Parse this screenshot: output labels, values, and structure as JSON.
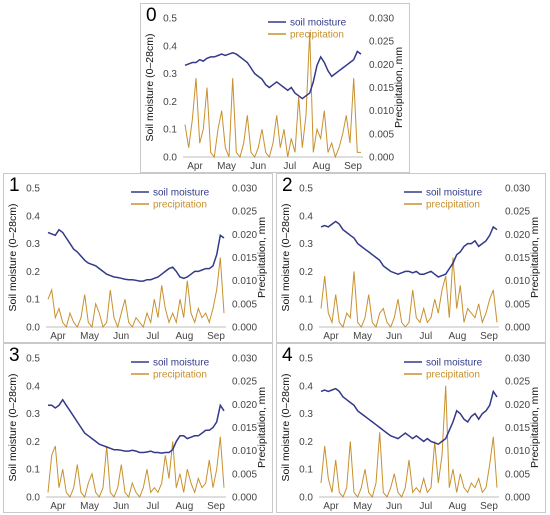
{
  "colors": {
    "soil_moisture": "#333a8a",
    "precipitation": "#c8902e",
    "axis": "#bdbdbd"
  },
  "chart_data": [
    {
      "panel_label": "0",
      "type": "line",
      "x_tick_labels": [
        "Apr",
        "May",
        "Jun",
        "Jul",
        "Aug",
        "Sep"
      ],
      "ylabel_left": "Soil moisture (0–28cm)",
      "ylabel_right": "Precipitation, mm",
      "y_left_ticks": [
        "0.0",
        "0.1",
        "0.2",
        "0.3",
        "0.4",
        "0.5"
      ],
      "y_right_ticks": [
        "0.000",
        "0.005",
        "0.010",
        "0.015",
        "0.020",
        "0.025",
        "0.030"
      ],
      "ylim_left": [
        0,
        0.5
      ],
      "ylim_right": [
        0,
        0.03
      ],
      "legend": [
        "soil moisture",
        "precipitation"
      ],
      "legend_position": "top-right",
      "series": [
        {
          "name": "soil moisture",
          "axis": "left",
          "values": [
            0.33,
            0.335,
            0.34,
            0.34,
            0.35,
            0.345,
            0.355,
            0.36,
            0.36,
            0.365,
            0.37,
            0.365,
            0.37,
            0.375,
            0.37,
            0.36,
            0.35,
            0.34,
            0.32,
            0.3,
            0.29,
            0.28,
            0.26,
            0.25,
            0.26,
            0.27,
            0.26,
            0.25,
            0.24,
            0.25,
            0.23,
            0.22,
            0.21,
            0.22,
            0.23,
            0.27,
            0.33,
            0.36,
            0.34,
            0.31,
            0.29,
            0.3,
            0.31,
            0.32,
            0.33,
            0.34,
            0.35,
            0.38,
            0.37
          ]
        },
        {
          "name": "precipitation",
          "axis": "right",
          "values": [
            0.007,
            0.002,
            0.008,
            0.017,
            0.003,
            0.006,
            0.015,
            0.001,
            0.0,
            0.006,
            0.01,
            0.002,
            0.0,
            0.017,
            0.001,
            0.0,
            0.003,
            0.009,
            0.001,
            0.0,
            0.002,
            0.006,
            0.001,
            0.0,
            0.003,
            0.009,
            0.002,
            0.006,
            0.0,
            0.004,
            0.001,
            0.013,
            0.002,
            0.009,
            0.027,
            0.001,
            0.006,
            0.004,
            0.01,
            0.001,
            0.003,
            0.0,
            0.002,
            0.005,
            0.009,
            0.003,
            0.017,
            0.001,
            0.001
          ]
        }
      ]
    },
    {
      "panel_label": "1",
      "type": "line",
      "x_tick_labels": [
        "Apr",
        "May",
        "Jun",
        "Jul",
        "Aug",
        "Sep"
      ],
      "ylabel_left": "Soil moisture (0–28cm)",
      "ylabel_right": "Precipitation, mm",
      "y_left_ticks": [
        "0.0",
        "0.1",
        "0.2",
        "0.3",
        "0.4",
        "0.5"
      ],
      "y_right_ticks": [
        "0.000",
        "0.005",
        "0.010",
        "0.015",
        "0.020",
        "0.025",
        "0.030"
      ],
      "ylim_left": [
        0,
        0.5
      ],
      "ylim_right": [
        0,
        0.03
      ],
      "legend": [
        "soil moisture",
        "precipitation"
      ],
      "legend_position": "top-right",
      "series": [
        {
          "name": "soil moisture",
          "axis": "left",
          "values": [
            0.34,
            0.335,
            0.33,
            0.35,
            0.34,
            0.32,
            0.3,
            0.28,
            0.27,
            0.255,
            0.24,
            0.23,
            0.225,
            0.22,
            0.21,
            0.2,
            0.19,
            0.185,
            0.18,
            0.178,
            0.175,
            0.172,
            0.17,
            0.17,
            0.168,
            0.165,
            0.165,
            0.17,
            0.17,
            0.175,
            0.18,
            0.19,
            0.2,
            0.21,
            0.215,
            0.2,
            0.18,
            0.175,
            0.18,
            0.19,
            0.2,
            0.2,
            0.205,
            0.21,
            0.21,
            0.22,
            0.26,
            0.33,
            0.32
          ]
        },
        {
          "name": "precipitation",
          "axis": "right",
          "values": [
            0.006,
            0.008,
            0.002,
            0.004,
            0.001,
            0.0,
            0.003,
            0.001,
            0.0,
            0.002,
            0.007,
            0.001,
            0.0,
            0.005,
            0.003,
            0.0,
            0.001,
            0.008,
            0.002,
            0.0,
            0.003,
            0.006,
            0.001,
            0.0,
            0.002,
            0.001,
            0.0,
            0.003,
            0.001,
            0.006,
            0.002,
            0.009,
            0.004,
            0.001,
            0.003,
            0.001,
            0.006,
            0.002,
            0.01,
            0.003,
            0.001,
            0.004,
            0.002,
            0.003,
            0.001,
            0.004,
            0.008,
            0.015,
            0.003
          ]
        }
      ]
    },
    {
      "panel_label": "2",
      "type": "line",
      "x_tick_labels": [
        "Apr",
        "May",
        "Jun",
        "Jul",
        "Aug",
        "Sep"
      ],
      "ylabel_left": "Soil moisture (0–28cm)",
      "ylabel_right": "Precipitation, mm",
      "y_left_ticks": [
        "0.0",
        "0.1",
        "0.2",
        "0.3",
        "0.4",
        "0.5"
      ],
      "y_right_ticks": [
        "0.000",
        "0.005",
        "0.010",
        "0.015",
        "0.020",
        "0.025",
        "0.030"
      ],
      "ylim_left": [
        0,
        0.5
      ],
      "ylim_right": [
        0,
        0.03
      ],
      "legend": [
        "soil moisture",
        "precipitation"
      ],
      "legend_position": "top-right",
      "series": [
        {
          "name": "soil moisture",
          "axis": "left",
          "values": [
            0.36,
            0.365,
            0.36,
            0.37,
            0.38,
            0.37,
            0.35,
            0.34,
            0.33,
            0.32,
            0.3,
            0.29,
            0.28,
            0.27,
            0.26,
            0.25,
            0.24,
            0.22,
            0.21,
            0.2,
            0.195,
            0.19,
            0.195,
            0.2,
            0.2,
            0.195,
            0.2,
            0.19,
            0.19,
            0.195,
            0.2,
            0.19,
            0.18,
            0.185,
            0.19,
            0.21,
            0.23,
            0.26,
            0.27,
            0.29,
            0.3,
            0.3,
            0.31,
            0.29,
            0.3,
            0.31,
            0.33,
            0.36,
            0.35
          ]
        },
        {
          "name": "precipitation",
          "axis": "right",
          "values": [
            0.004,
            0.011,
            0.003,
            0.001,
            0.007,
            0.001,
            0.0,
            0.003,
            0.002,
            0.012,
            0.001,
            0.0,
            0.002,
            0.007,
            0.001,
            0.0,
            0.003,
            0.004,
            0.001,
            0.0,
            0.002,
            0.006,
            0.001,
            0.0,
            0.001,
            0.008,
            0.002,
            0.001,
            0.004,
            0.001,
            0.002,
            0.006,
            0.003,
            0.008,
            0.011,
            0.002,
            0.015,
            0.004,
            0.009,
            0.001,
            0.004,
            0.003,
            0.002,
            0.005,
            0.001,
            0.003,
            0.006,
            0.008,
            0.001
          ]
        }
      ]
    },
    {
      "panel_label": "3",
      "type": "line",
      "x_tick_labels": [
        "Apr",
        "May",
        "Jun",
        "Jul",
        "Aug",
        "Sep"
      ],
      "ylabel_left": "Soil moisture (0–28cm)",
      "ylabel_right": "Precipitation, mm",
      "y_left_ticks": [
        "0.0",
        "0.1",
        "0.2",
        "0.3",
        "0.4",
        "0.5"
      ],
      "y_right_ticks": [
        "0.000",
        "0.005",
        "0.010",
        "0.015",
        "0.020",
        "0.025",
        "0.030"
      ],
      "ylim_left": [
        0,
        0.5
      ],
      "ylim_right": [
        0,
        0.03
      ],
      "legend": [
        "soil moisture",
        "precipitation"
      ],
      "legend_position": "top-right",
      "series": [
        {
          "name": "soil moisture",
          "axis": "left",
          "values": [
            0.33,
            0.33,
            0.32,
            0.33,
            0.35,
            0.33,
            0.31,
            0.29,
            0.27,
            0.25,
            0.23,
            0.22,
            0.21,
            0.2,
            0.19,
            0.185,
            0.18,
            0.175,
            0.17,
            0.17,
            0.168,
            0.165,
            0.165,
            0.168,
            0.165,
            0.16,
            0.16,
            0.162,
            0.165,
            0.16,
            0.16,
            0.158,
            0.16,
            0.16,
            0.17,
            0.2,
            0.22,
            0.22,
            0.21,
            0.215,
            0.22,
            0.22,
            0.23,
            0.24,
            0.24,
            0.25,
            0.27,
            0.33,
            0.31
          ]
        },
        {
          "name": "precipitation",
          "axis": "right",
          "values": [
            0.001,
            0.009,
            0.011,
            0.002,
            0.006,
            0.001,
            0.0,
            0.002,
            0.007,
            0.001,
            0.0,
            0.003,
            0.005,
            0.001,
            0.0,
            0.002,
            0.011,
            0.001,
            0.0,
            0.002,
            0.007,
            0.001,
            0.0,
            0.003,
            0.001,
            0.0,
            0.002,
            0.006,
            0.001,
            0.002,
            0.001,
            0.003,
            0.009,
            0.004,
            0.012,
            0.002,
            0.005,
            0.001,
            0.006,
            0.003,
            0.001,
            0.004,
            0.002,
            0.003,
            0.008,
            0.002,
            0.006,
            0.013,
            0.002
          ]
        }
      ]
    },
    {
      "panel_label": "4",
      "type": "line",
      "x_tick_labels": [
        "Apr",
        "May",
        "Jun",
        "Jul",
        "Aug",
        "Sep"
      ],
      "ylabel_left": "Soil moisture (0–28cm)",
      "ylabel_right": "Precipitation, mm",
      "y_left_ticks": [
        "0.0",
        "0.1",
        "0.2",
        "0.3",
        "0.4",
        "0.5"
      ],
      "y_right_ticks": [
        "0.000",
        "0.005",
        "0.010",
        "0.015",
        "0.020",
        "0.025",
        "0.030"
      ],
      "ylim_left": [
        0,
        0.5
      ],
      "ylim_right": [
        0,
        0.03
      ],
      "legend": [
        "soil moisture",
        "precipitation"
      ],
      "legend_position": "top-right",
      "series": [
        {
          "name": "soil moisture",
          "axis": "left",
          "values": [
            0.38,
            0.385,
            0.38,
            0.385,
            0.39,
            0.38,
            0.36,
            0.35,
            0.34,
            0.33,
            0.31,
            0.3,
            0.29,
            0.28,
            0.27,
            0.26,
            0.25,
            0.24,
            0.23,
            0.22,
            0.215,
            0.21,
            0.22,
            0.23,
            0.22,
            0.21,
            0.22,
            0.21,
            0.2,
            0.21,
            0.2,
            0.195,
            0.19,
            0.2,
            0.21,
            0.24,
            0.27,
            0.31,
            0.3,
            0.28,
            0.27,
            0.29,
            0.3,
            0.28,
            0.3,
            0.31,
            0.33,
            0.38,
            0.36
          ]
        },
        {
          "name": "precipitation",
          "axis": "right",
          "values": [
            0.003,
            0.011,
            0.004,
            0.001,
            0.008,
            0.001,
            0.0,
            0.002,
            0.012,
            0.001,
            0.0,
            0.002,
            0.006,
            0.001,
            0.0,
            0.003,
            0.014,
            0.001,
            0.0,
            0.002,
            0.005,
            0.001,
            0.0,
            0.002,
            0.008,
            0.001,
            0.002,
            0.001,
            0.004,
            0.001,
            0.002,
            0.012,
            0.003,
            0.009,
            0.024,
            0.002,
            0.006,
            0.001,
            0.005,
            0.002,
            0.001,
            0.003,
            0.002,
            0.004,
            0.001,
            0.002,
            0.007,
            0.013,
            0.002
          ]
        }
      ]
    }
  ]
}
